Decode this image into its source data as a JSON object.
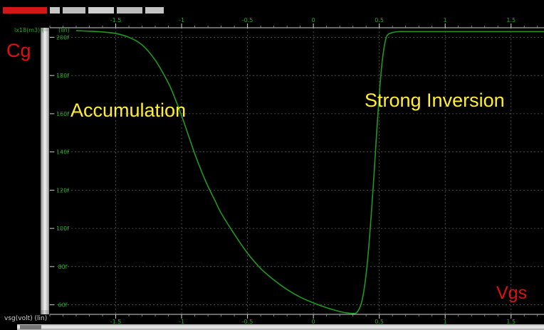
{
  "labels": {
    "y_name": "Cg",
    "x_name": "Vgs",
    "region_accumulation": "Accumulation",
    "region_inversion": "Strong Inversion",
    "trace_label": "lx18(m3) (",
    "y_scale": "(lin)",
    "x_axis_label": "vsg(volt) (lin)"
  },
  "colors": {
    "background": "#000000",
    "curve": "#1f9a1f",
    "tick_text": "#20b020",
    "annotation_red": "#e01010",
    "annotation_yellow": "#ffee33",
    "grid": "#5a5a5a"
  },
  "chart_data": {
    "type": "line",
    "xlabel": "vsg(volt) (lin)",
    "ylabel": "Cg",
    "xlim": [
      -2.0,
      1.75
    ],
    "ylim": [
      55,
      205
    ],
    "x_ticks": [
      -1.5,
      -1,
      -0.5,
      0,
      0.5,
      1,
      1.5
    ],
    "x_tick_labels": [
      "-1.5",
      "-1",
      "-0.5",
      "0",
      "0.5",
      "1",
      "1.5"
    ],
    "y_ticks": [
      60,
      80,
      100,
      120,
      140,
      160,
      180,
      200
    ],
    "y_tick_labels": [
      "60f",
      "80f",
      "100f",
      "120f",
      "140f",
      "160f",
      "180f",
      "200f"
    ],
    "grid": true,
    "series": [
      {
        "x": [
          -1.8,
          -1.6,
          -1.5,
          -1.4,
          -1.3,
          -1.2,
          -1.1,
          -1.05,
          -1.0,
          -0.95,
          -0.9,
          -0.85,
          -0.8,
          -0.75,
          -0.7,
          -0.6,
          -0.5,
          -0.4,
          -0.3,
          -0.2,
          -0.1,
          0.0,
          0.1,
          0.2,
          0.25,
          0.3,
          0.33,
          0.36,
          0.38,
          0.4,
          0.42,
          0.44,
          0.46,
          0.48,
          0.5,
          0.52,
          0.54,
          0.56,
          0.6,
          0.65,
          0.7,
          0.8,
          1.0,
          1.2,
          1.5,
          1.75
        ],
        "y": [
          203.5,
          202.8,
          202,
          200,
          196,
          188,
          176,
          168,
          159,
          149,
          139,
          130,
          122,
          115,
          108,
          97,
          87,
          79,
          73,
          68,
          64,
          61,
          58.5,
          56.5,
          55.8,
          55.5,
          56,
          60,
          66,
          76,
          90,
          108,
          128,
          150,
          170,
          186,
          196,
          201,
          202.5,
          203,
          203,
          203,
          203,
          203,
          203,
          203
        ]
      }
    ]
  }
}
